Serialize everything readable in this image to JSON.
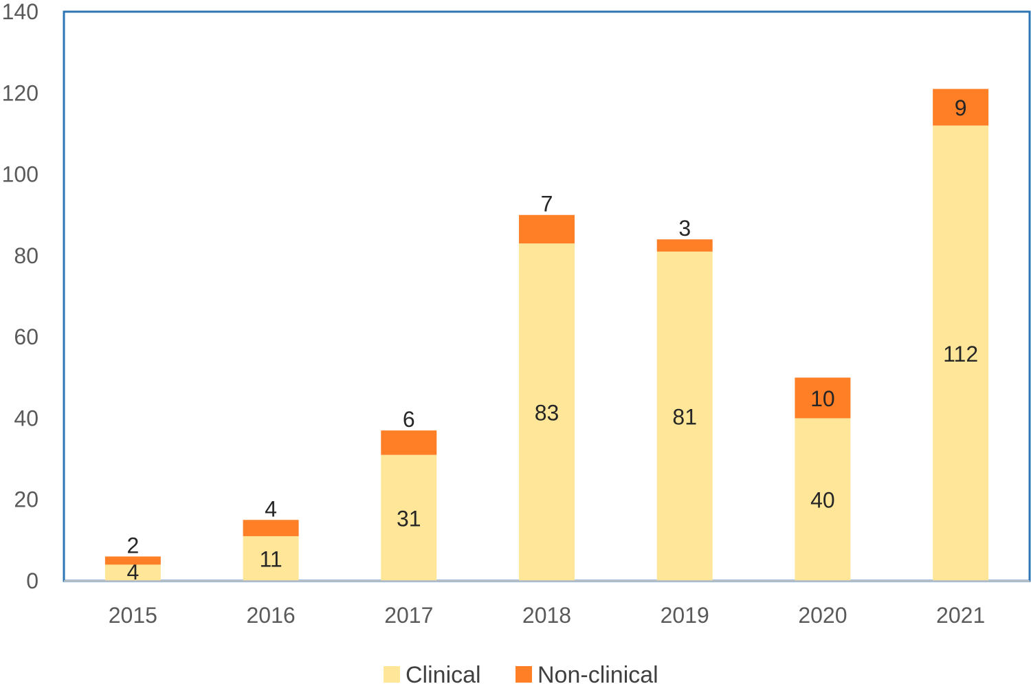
{
  "chart_data": {
    "type": "bar",
    "stacked": true,
    "categories": [
      "2015",
      "2016",
      "2017",
      "2018",
      "2019",
      "2020",
      "2021"
    ],
    "series": [
      {
        "name": "Clinical",
        "values": [
          4,
          11,
          31,
          83,
          81,
          40,
          112
        ],
        "color": "#FFE699"
      },
      {
        "name": "Non-clinical",
        "values": [
          2,
          4,
          6,
          7,
          3,
          10,
          9
        ],
        "color": "#FF7F27"
      }
    ],
    "ylim": [
      0,
      140
    ],
    "yticks": [
      0,
      20,
      40,
      60,
      80,
      100,
      120,
      140
    ],
    "grid": false,
    "legend": "bottom",
    "frame_color": "#2E75B6"
  }
}
